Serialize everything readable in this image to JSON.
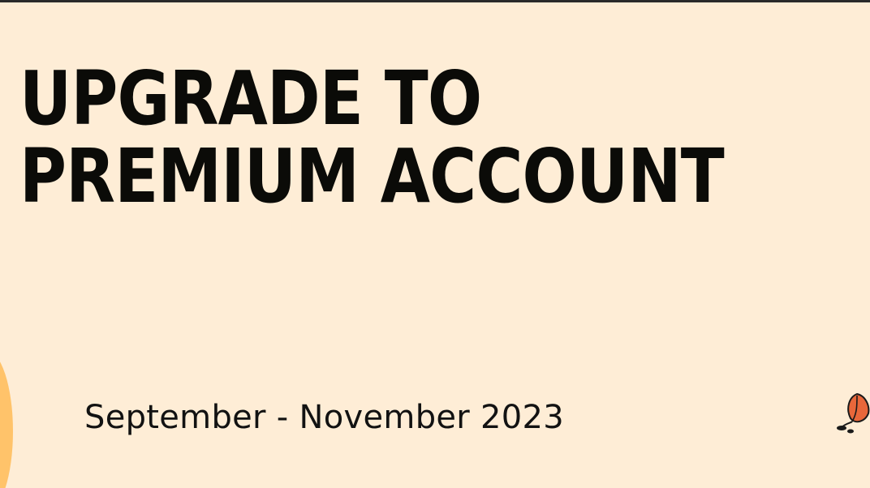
{
  "slide": {
    "title_line1": "UPGRADE TO",
    "title_line2": "PREMIUM ACCOUNT",
    "date_range": "September - November 2023"
  },
  "decorations": {
    "left_circle": "half-circle",
    "right_icon": "leaf-icon"
  },
  "colors": {
    "background": "#FEEDD6",
    "text": "#0b0b08",
    "accent_circle": "#FFC36A",
    "leaf": "#E8673A"
  }
}
